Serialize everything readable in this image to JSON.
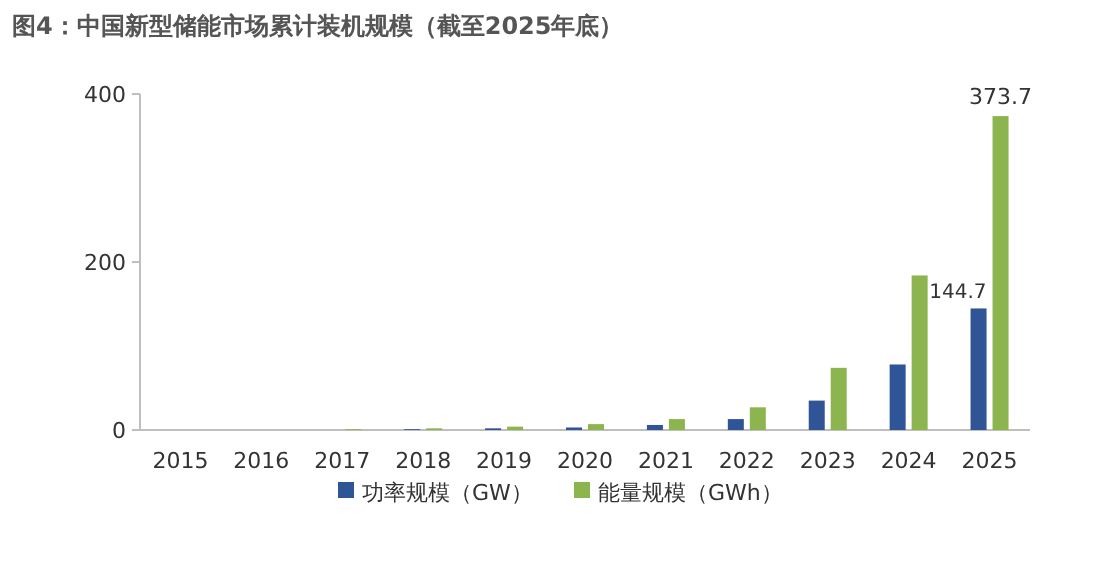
{
  "chart_data": {
    "type": "bar",
    "title": "图4：中国新型储能市场累计装机规模（截至2025年底）",
    "categories": [
      "2015",
      "2016",
      "2017",
      "2018",
      "2019",
      "2020",
      "2021",
      "2022",
      "2023",
      "2024",
      "2025"
    ],
    "series": [
      {
        "name": "功率规模（GW）",
        "color": "#2f5597",
        "values": [
          0,
          0,
          0,
          1,
          2,
          3,
          6,
          13,
          35,
          78,
          144.7
        ],
        "value_labels": [
          null,
          null,
          null,
          null,
          null,
          null,
          null,
          null,
          null,
          null,
          "144.7"
        ]
      },
      {
        "name": "能量规模（GWh）",
        "color": "#8db54f",
        "values": [
          0,
          0,
          1,
          2,
          4,
          7,
          13,
          27,
          74,
          184,
          373.7
        ],
        "value_labels": [
          null,
          null,
          null,
          null,
          null,
          null,
          null,
          null,
          null,
          null,
          "373.7"
        ]
      }
    ],
    "ylim": [
      0,
      400
    ],
    "yticks": [
      0,
      200,
      400
    ],
    "grid": false,
    "legend": "bottom"
  }
}
